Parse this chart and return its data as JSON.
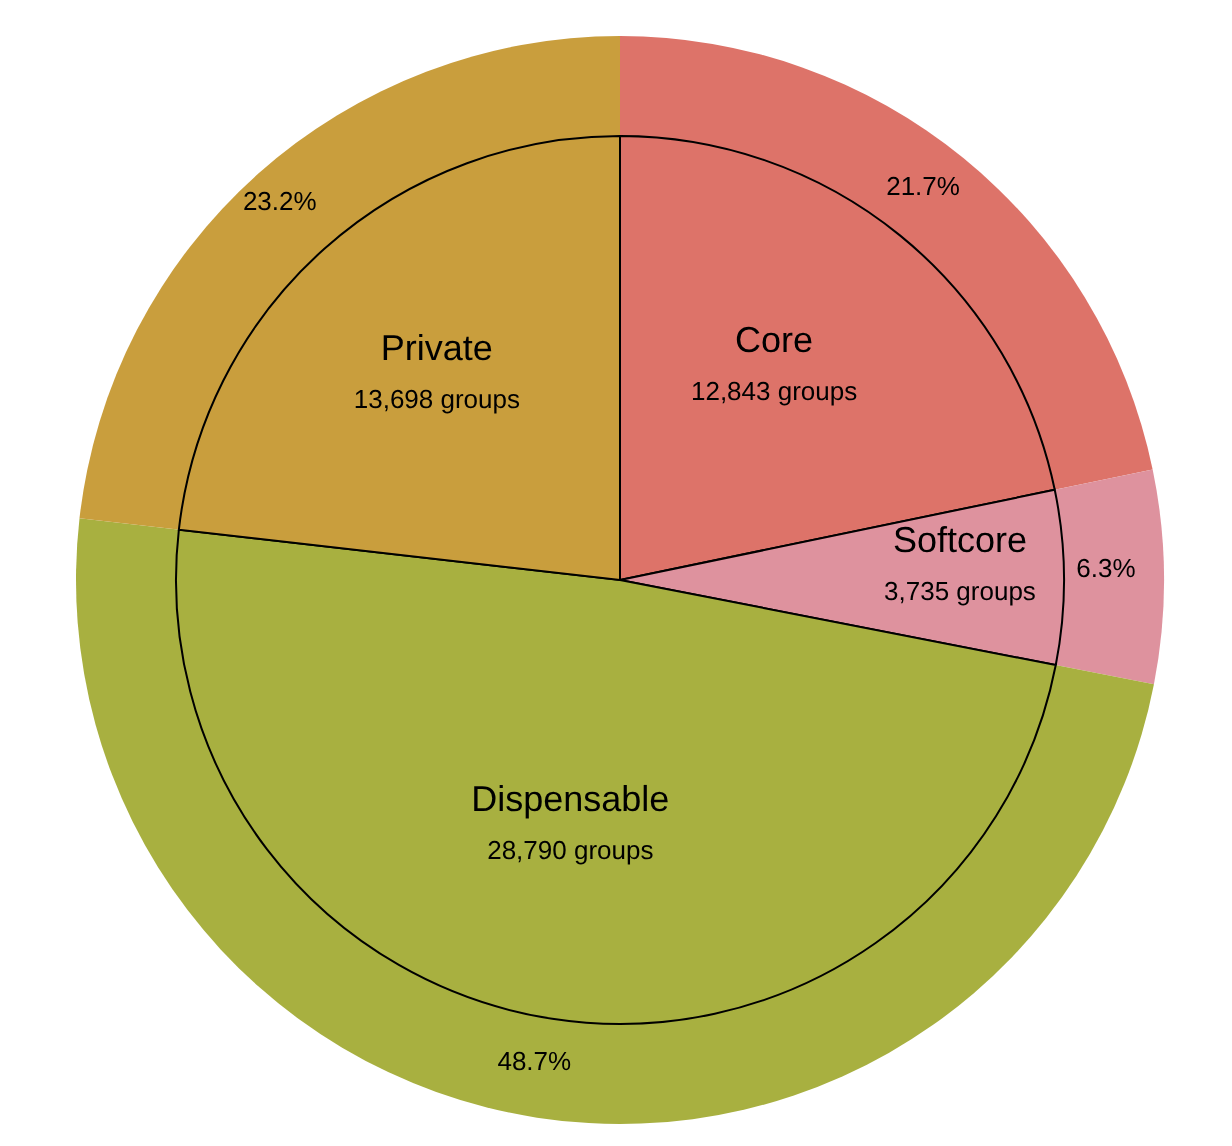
{
  "chart_data": {
    "type": "pie",
    "categories": [
      "Core",
      "Softcore",
      "Dispensable",
      "Private"
    ],
    "values": [
      12843,
      3735,
      28790,
      13698
    ],
    "colors": [
      "#dd7369",
      "#de929e",
      "#a8b040",
      "#c99e3d"
    ],
    "value_labels": [
      "12,843 groups",
      "3,735 groups",
      "28,790 groups",
      "13,698 groups"
    ],
    "annotations": [
      {
        "text": "21.7%",
        "x": "Core"
      },
      {
        "text": "6.3%",
        "x": "Softcore"
      },
      {
        "text": "48.7%",
        "x": "Dispensable"
      },
      {
        "text": "23.2%",
        "x": "Private"
      }
    ],
    "legend": false
  }
}
